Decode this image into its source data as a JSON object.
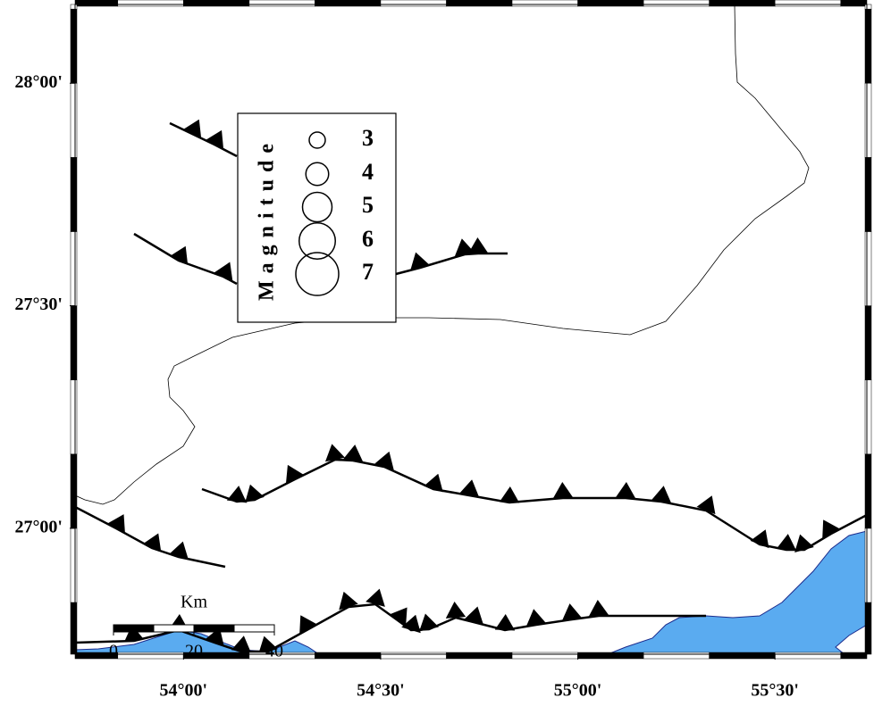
{
  "map": {
    "lonlim": [
      53.725,
      55.733
    ],
    "latlim": [
      26.717,
      28.177
    ],
    "lon_ticks": [
      {
        "value": 54,
        "label": "54°00'"
      },
      {
        "value": 54.5,
        "label": "54°30'"
      },
      {
        "value": 55,
        "label": "55°00'"
      },
      {
        "value": 55.5,
        "label": "55°30'"
      }
    ],
    "lat_ticks": [
      {
        "value": 27,
        "label": "27°00'"
      },
      {
        "value": 27.5,
        "label": "27°30'"
      },
      {
        "value": 28,
        "label": "28°00'"
      }
    ]
  },
  "legend": {
    "title": "Magnitude",
    "sizes": [
      3,
      4,
      5,
      6,
      7
    ]
  },
  "scale_bar": {
    "title": "Km",
    "ticks": [
      0,
      20,
      40
    ]
  }
}
